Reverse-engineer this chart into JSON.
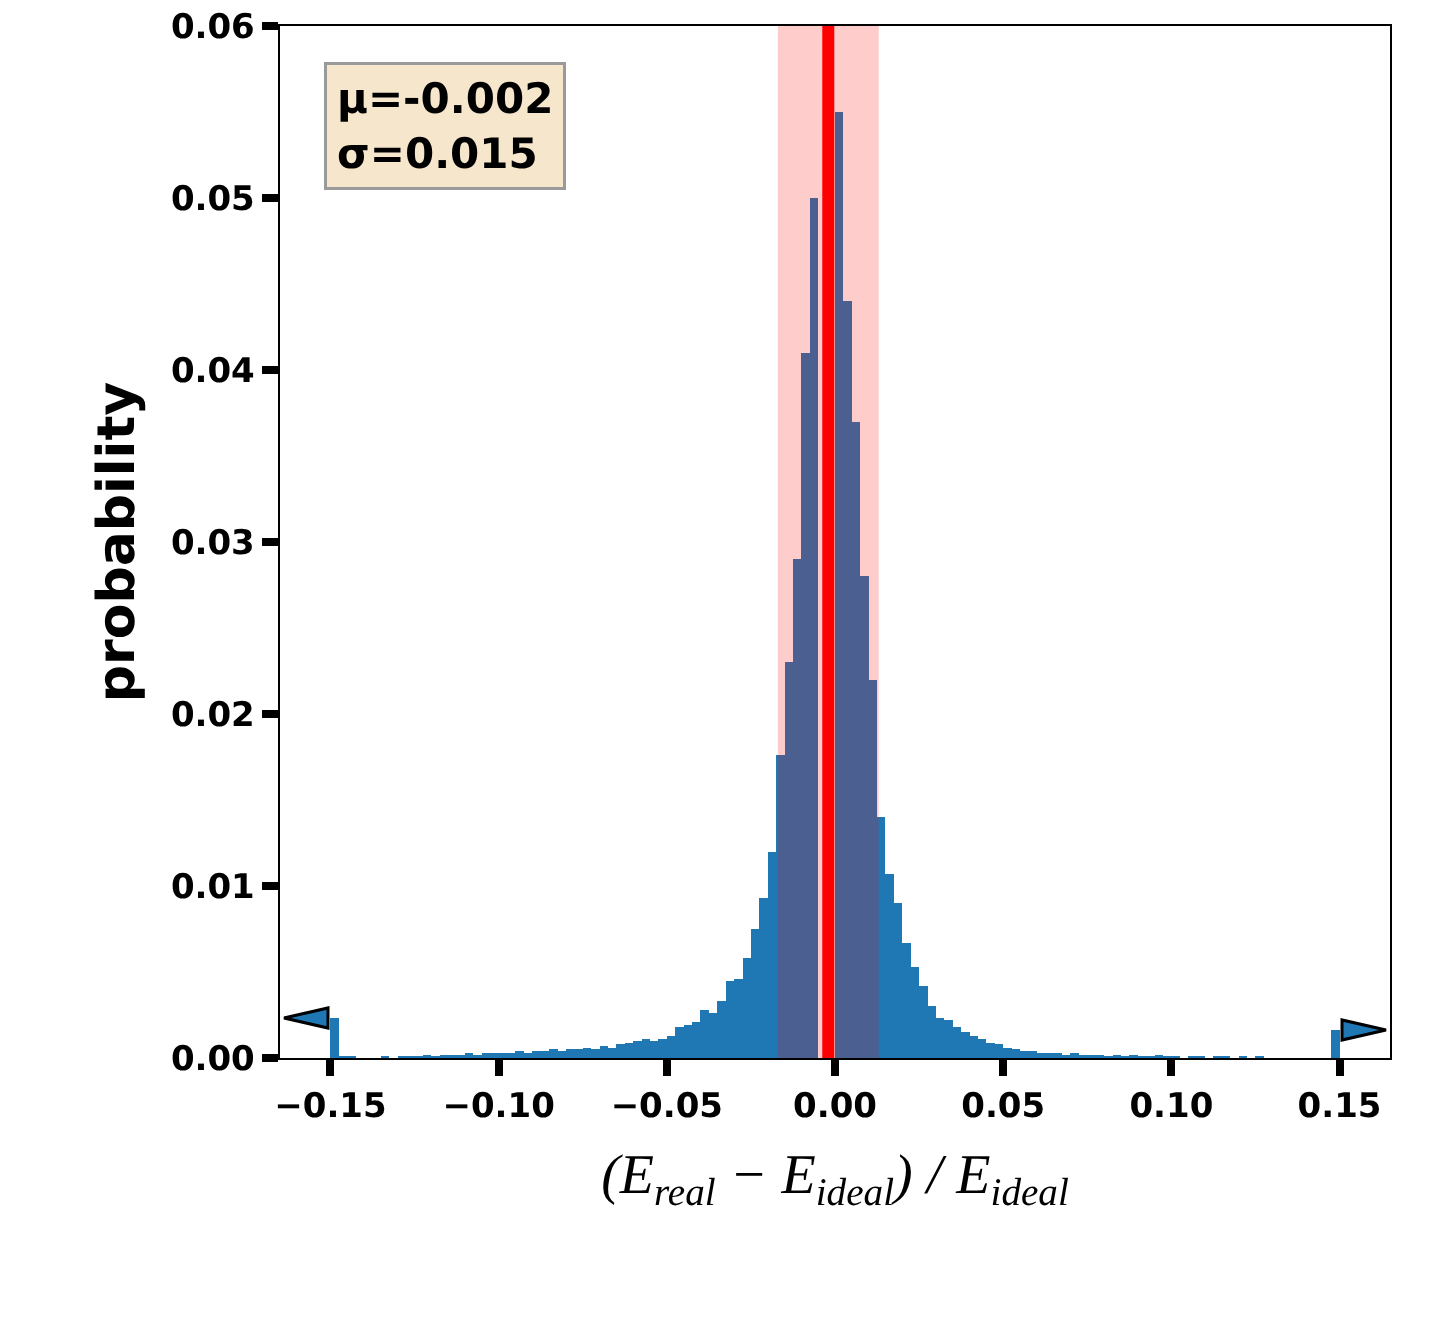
{
  "chart_data": {
    "type": "histogram",
    "bins": [
      -0.15,
      -0.1475,
      -0.145,
      -0.1425,
      -0.14,
      -0.1375,
      -0.135,
      -0.1325,
      -0.13,
      -0.1275,
      -0.125,
      -0.1225,
      -0.12,
      -0.1175,
      -0.115,
      -0.1125,
      -0.11,
      -0.1075,
      -0.105,
      -0.1025,
      -0.1,
      -0.0975,
      -0.095,
      -0.0925,
      -0.09,
      -0.0875,
      -0.085,
      -0.0825,
      -0.08,
      -0.0775,
      -0.075,
      -0.0725,
      -0.07,
      -0.0675,
      -0.065,
      -0.0625,
      -0.06,
      -0.0575,
      -0.055,
      -0.0525,
      -0.05,
      -0.0475,
      -0.045,
      -0.0425,
      -0.04,
      -0.0375,
      -0.035,
      -0.0325,
      -0.03,
      -0.0275,
      -0.025,
      -0.0225,
      -0.02,
      -0.0175,
      -0.015,
      -0.0125,
      -0.01,
      -0.0075,
      -0.005,
      -0.0025,
      0,
      0.0025,
      0.005,
      0.0075,
      0.01,
      0.0125,
      0.015,
      0.0175,
      0.02,
      0.0225,
      0.025,
      0.0275,
      0.03,
      0.0325,
      0.035,
      0.0375,
      0.04,
      0.0425,
      0.045,
      0.0475,
      0.05,
      0.0525,
      0.055,
      0.0575,
      0.06,
      0.0625,
      0.065,
      0.0675,
      0.07,
      0.0725,
      0.075,
      0.0775,
      0.08,
      0.0825,
      0.085,
      0.0875,
      0.09,
      0.0925,
      0.095,
      0.0975,
      0.1,
      0.1025,
      0.105,
      0.1075,
      0.11,
      0.1125,
      0.115,
      0.1175,
      0.12,
      0.1225,
      0.125,
      0.1275,
      0.13,
      0.1325,
      0.135,
      0.1375,
      0.14,
      0.1425,
      0.145,
      0.1475,
      0.15
    ],
    "values": [
      0.0023,
      0.0001,
      0.0001,
      0,
      0,
      0,
      0.0001,
      0,
      0.0001,
      0.0001,
      0.0001,
      0.0002,
      0.0001,
      0.0002,
      0.0002,
      0.0002,
      0.0003,
      0.0002,
      0.0003,
      0.0003,
      0.0003,
      0.0003,
      0.0004,
      0.0003,
      0.0004,
      0.0004,
      0.0005,
      0.0004,
      0.0005,
      0.0005,
      0.0006,
      0.0005,
      0.0007,
      0.0006,
      0.0008,
      0.0009,
      0.001,
      0.0011,
      0.001,
      0.0011,
      0.0013,
      0.0018,
      0.0019,
      0.0021,
      0.0028,
      0.0026,
      0.0033,
      0.0045,
      0.0046,
      0.0058,
      0.0075,
      0.0093,
      0.012,
      0.0176,
      0.023,
      0.029,
      0.041,
      0.05,
      null,
      null,
      0.055,
      0.044,
      0.037,
      0.028,
      0.022,
      0.014,
      0.0107,
      0.009,
      0.0067,
      0.0053,
      0.0042,
      0.003,
      0.0023,
      0.0022,
      0.0018,
      0.0015,
      0.0013,
      0.0011,
      0.0009,
      0.0008,
      0.0006,
      0.0005,
      0.0004,
      0.0004,
      0.0003,
      0.0003,
      0.0003,
      0.0002,
      0.0003,
      0.0002,
      0.0002,
      0.0002,
      0.0001,
      0.0002,
      0.0001,
      0.0002,
      0.0001,
      0.0001,
      0.0002,
      0.0001,
      0.0001,
      0,
      0.0001,
      0.0001,
      0,
      0.0001,
      0.0001,
      0,
      0.0001,
      0,
      0.0001,
      0,
      0,
      0,
      0,
      0,
      0,
      0,
      0,
      0.0016
    ],
    "color": "#1f77b4",
    "xlabel": "(E$_{real}$ − E$_{ideal}$) / E$_{ideal}$",
    "ylabel": "probability",
    "xlim": [
      -0.165,
      0.165
    ],
    "xticks": [
      {
        "value": -0.15,
        "label": "−0.15"
      },
      {
        "value": -0.1,
        "label": "−0.10"
      },
      {
        "value": -0.05,
        "label": "−0.05"
      },
      {
        "value": 0,
        "label": "0.00"
      },
      {
        "value": 0.05,
        "label": "0.05"
      },
      {
        "value": 0.1,
        "label": "0.10"
      },
      {
        "value": 0.15,
        "label": "0.15"
      }
    ],
    "ylim": [
      0,
      0.06
    ],
    "yticks": [
      {
        "value": 0,
        "label": "0.00"
      },
      0.01,
      0.02,
      0.03,
      0.04,
      0.05,
      0.06
    ],
    "ref_lines": [
      {
        "axis": "x",
        "value": -0.002,
        "color": "#ff0000"
      }
    ],
    "bands": [
      {
        "axis": "x",
        "from": -0.017,
        "to": 0.013,
        "color": "#ff0000"
      }
    ],
    "annotations": [
      "μ=-0.002\nσ=0.015"
    ]
  }
}
